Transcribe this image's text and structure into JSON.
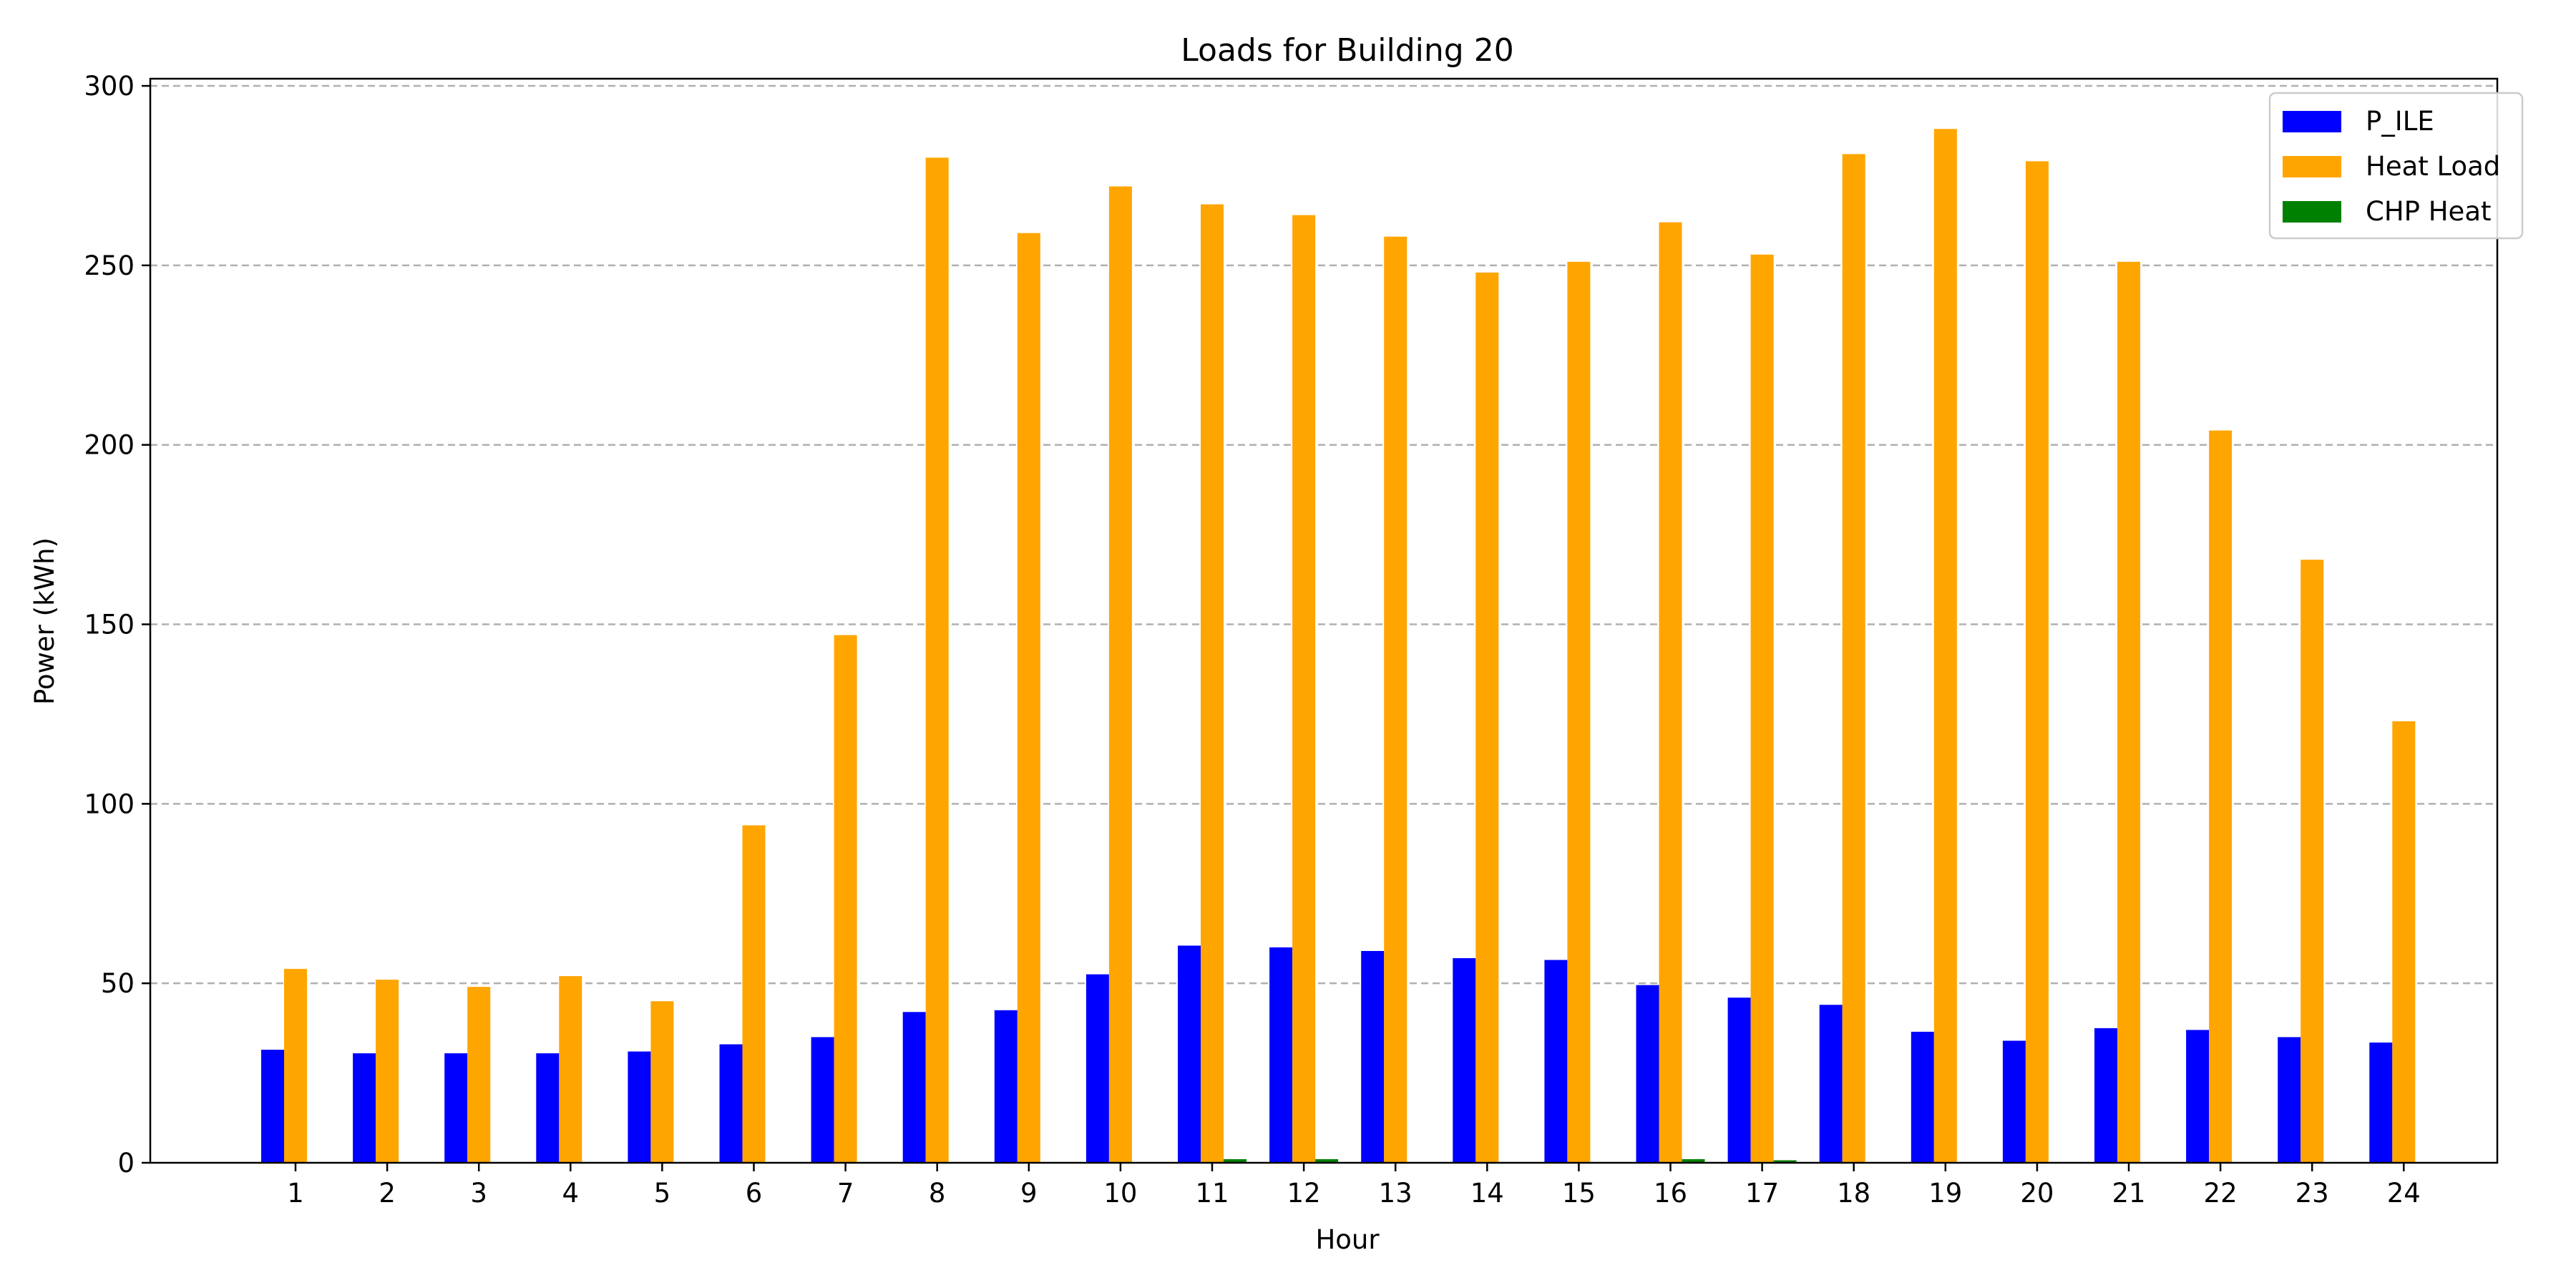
{
  "chart_data": {
    "type": "bar",
    "title": "Loads for Building 20",
    "xlabel": "Hour",
    "ylabel": "Power (kWh)",
    "categories": [
      "1",
      "2",
      "3",
      "4",
      "5",
      "6",
      "7",
      "8",
      "9",
      "10",
      "11",
      "12",
      "13",
      "14",
      "15",
      "16",
      "17",
      "18",
      "19",
      "20",
      "21",
      "22",
      "23",
      "24"
    ],
    "ylim": [
      0,
      302
    ],
    "yticks": [
      0,
      50,
      100,
      150,
      200,
      250,
      300
    ],
    "grid": "y-dashed",
    "legend_position": "top-right",
    "series": [
      {
        "name": "P_ILE",
        "color": "#0000ff",
        "values": [
          31.5,
          30.5,
          30.5,
          30.5,
          31,
          33,
          35,
          42,
          42.5,
          52.5,
          60.5,
          60,
          59,
          57,
          56.5,
          49.5,
          46,
          44,
          36.5,
          34,
          37.5,
          37,
          35,
          33.5
        ]
      },
      {
        "name": "Heat Load",
        "color": "#ffa500",
        "values": [
          54,
          51,
          49,
          52,
          45,
          94,
          147,
          280,
          259,
          272,
          267,
          264,
          258,
          248,
          251,
          262,
          253,
          281,
          288,
          279,
          251,
          204,
          168,
          123
        ]
      },
      {
        "name": "CHP Heat",
        "color": "#008000",
        "values": [
          0,
          0,
          0,
          0,
          0,
          0,
          0,
          0,
          0,
          0,
          1,
          1,
          0,
          0,
          0,
          1,
          0.7,
          0,
          0,
          0,
          0,
          0,
          0,
          0
        ]
      }
    ]
  }
}
